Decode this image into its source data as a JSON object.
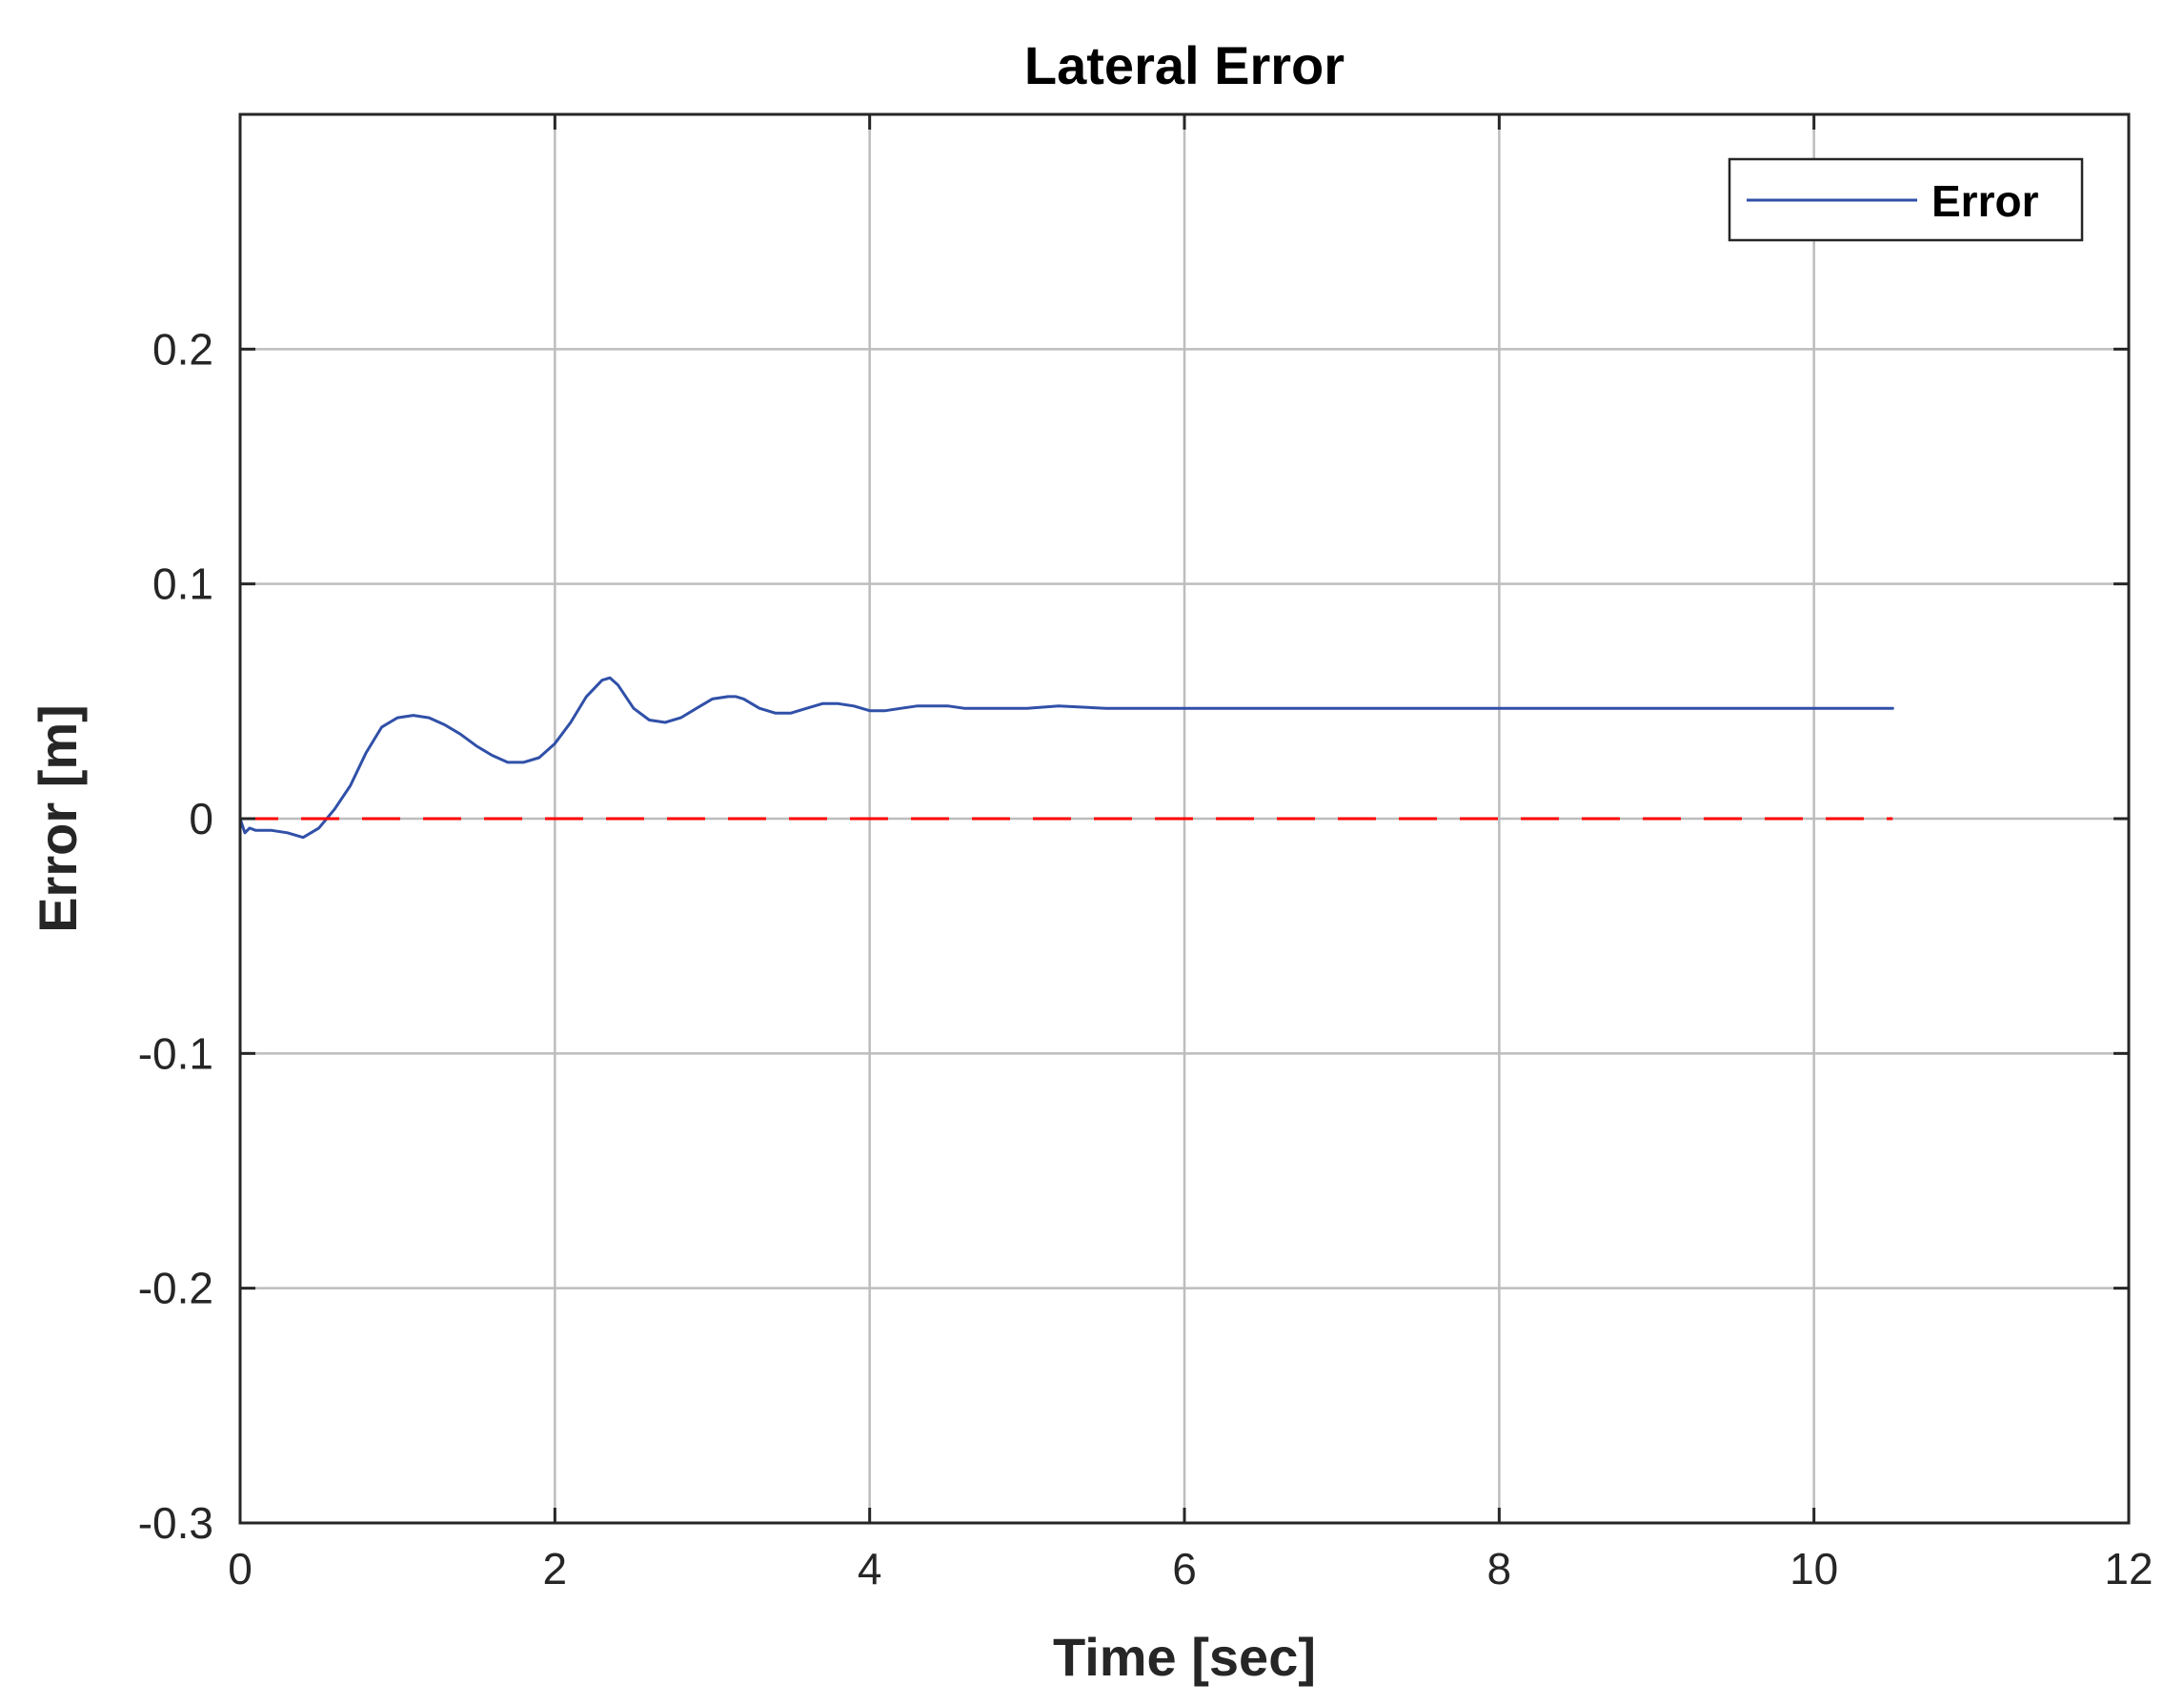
{
  "chart_data": {
    "type": "line",
    "title": "Lateral Error",
    "xlabel": "Time [sec]",
    "ylabel": "Error [m]",
    "xlim": [
      0,
      12
    ],
    "ylim": [
      -0.3,
      0.3
    ],
    "xticks": [
      0,
      2,
      4,
      6,
      8,
      10,
      12
    ],
    "xtick_labels": [
      "0",
      "2",
      "4",
      "6",
      "8",
      "10",
      "12"
    ],
    "yticks": [
      -0.3,
      -0.2,
      -0.1,
      0,
      0.1,
      0.2
    ],
    "ytick_labels": [
      "-0.3",
      "-0.2",
      "-0.1",
      "0",
      "0.1",
      "0.2"
    ],
    "grid": true,
    "legend_position": "top-right",
    "series": [
      {
        "name": "Error",
        "color": "#3050a8",
        "style": "solid",
        "x": [
          0,
          0.03,
          0.06,
          0.1,
          0.2,
          0.3,
          0.4,
          0.5,
          0.6,
          0.7,
          0.8,
          0.9,
          1.0,
          1.1,
          1.2,
          1.3,
          1.4,
          1.5,
          1.6,
          1.7,
          1.8,
          1.9,
          2.0,
          2.1,
          2.2,
          2.3,
          2.35,
          2.4,
          2.5,
          2.6,
          2.7,
          2.8,
          2.9,
          3.0,
          3.1,
          3.15,
          3.2,
          3.3,
          3.4,
          3.5,
          3.6,
          3.7,
          3.8,
          3.9,
          4.0,
          4.1,
          4.2,
          4.3,
          4.4,
          4.5,
          4.6,
          4.8,
          5.0,
          5.2,
          5.5,
          6.0,
          6.5,
          7.0,
          8.0,
          9.0,
          10.0,
          10.5
        ],
        "y": [
          0.0,
          -0.006,
          -0.004,
          -0.005,
          -0.005,
          -0.006,
          -0.008,
          -0.004,
          0.004,
          0.014,
          0.028,
          0.039,
          0.043,
          0.044,
          0.043,
          0.04,
          0.036,
          0.031,
          0.027,
          0.024,
          0.024,
          0.026,
          0.032,
          0.041,
          0.052,
          0.059,
          0.06,
          0.057,
          0.047,
          0.042,
          0.041,
          0.043,
          0.047,
          0.051,
          0.052,
          0.052,
          0.051,
          0.047,
          0.045,
          0.045,
          0.047,
          0.049,
          0.049,
          0.048,
          0.046,
          0.046,
          0.047,
          0.048,
          0.048,
          0.048,
          0.047,
          0.047,
          0.047,
          0.048,
          0.047,
          0.047,
          0.047,
          0.047,
          0.047,
          0.047,
          0.047,
          0.047
        ]
      },
      {
        "color": "#ff0000",
        "style": "dashed",
        "x": [
          0,
          10.5
        ],
        "y": [
          0,
          0
        ]
      }
    ]
  }
}
